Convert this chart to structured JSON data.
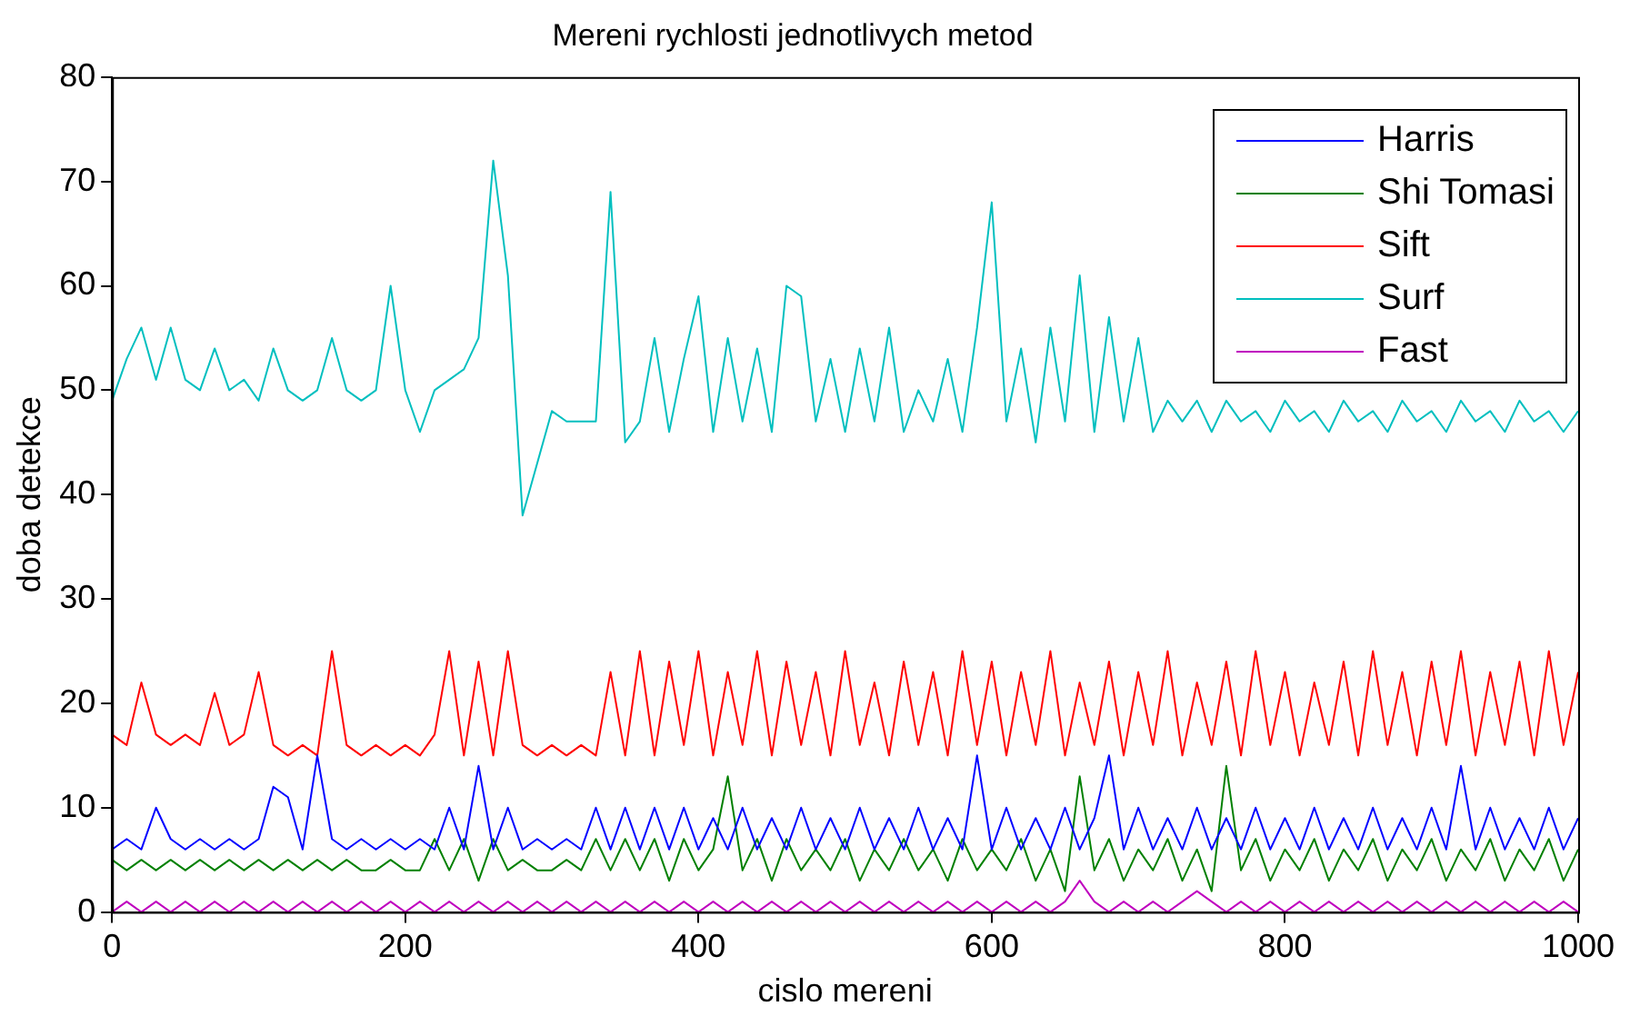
{
  "chart_data": {
    "type": "line",
    "title": "Mereni rychlosti jednotlivych metod",
    "xlabel": "cislo mereni",
    "ylabel": "doba detekce",
    "legend": "top right",
    "xlim": [
      0,
      1000
    ],
    "ylim": [
      0,
      80
    ],
    "xticks": [
      0,
      200,
      400,
      600,
      800,
      1000
    ],
    "yticks": [
      0,
      10,
      20,
      30,
      40,
      50,
      60,
      70,
      80
    ],
    "x": [
      0,
      10,
      20,
      30,
      40,
      50,
      60,
      70,
      80,
      90,
      100,
      110,
      120,
      130,
      140,
      150,
      160,
      170,
      180,
      190,
      200,
      210,
      220,
      230,
      240,
      250,
      260,
      270,
      280,
      290,
      300,
      310,
      320,
      330,
      340,
      350,
      360,
      370,
      380,
      390,
      400,
      410,
      420,
      430,
      440,
      450,
      460,
      470,
      480,
      490,
      500,
      510,
      520,
      530,
      540,
      550,
      560,
      570,
      580,
      590,
      600,
      610,
      620,
      630,
      640,
      650,
      660,
      670,
      680,
      690,
      700,
      710,
      720,
      730,
      740,
      750,
      760,
      770,
      780,
      790,
      800,
      810,
      820,
      830,
      840,
      850,
      860,
      870,
      880,
      890,
      900,
      910,
      920,
      930,
      940,
      950,
      960,
      970,
      980,
      990,
      1000
    ],
    "series": [
      {
        "name": "Harris",
        "color": "#0000ff",
        "values": [
          6,
          7,
          6,
          10,
          7,
          6,
          7,
          6,
          7,
          6,
          7,
          12,
          11,
          6,
          15,
          7,
          6,
          7,
          6,
          7,
          6,
          7,
          6,
          10,
          6,
          14,
          6,
          10,
          6,
          7,
          6,
          7,
          6,
          10,
          6,
          10,
          6,
          10,
          6,
          10,
          6,
          9,
          6,
          10,
          6,
          9,
          6,
          10,
          6,
          9,
          6,
          10,
          6,
          9,
          6,
          10,
          6,
          9,
          6,
          15,
          6,
          10,
          6,
          9,
          6,
          10,
          6,
          9,
          15,
          6,
          10,
          6,
          9,
          6,
          10,
          6,
          9,
          6,
          10,
          6,
          9,
          6,
          10,
          6,
          9,
          6,
          10,
          6,
          9,
          6,
          10,
          6,
          14,
          6,
          10,
          6,
          9,
          6,
          10,
          6,
          9
        ]
      },
      {
        "name": "Shi Tomasi",
        "color": "#008000",
        "values": [
          5,
          4,
          5,
          4,
          5,
          4,
          5,
          4,
          5,
          4,
          5,
          4,
          5,
          4,
          5,
          4,
          5,
          4,
          4,
          5,
          4,
          4,
          7,
          4,
          7,
          3,
          7,
          4,
          5,
          4,
          4,
          5,
          4,
          7,
          4,
          7,
          4,
          7,
          3,
          7,
          4,
          6,
          13,
          4,
          7,
          3,
          7,
          4,
          6,
          4,
          7,
          3,
          6,
          4,
          7,
          4,
          6,
          3,
          7,
          4,
          6,
          4,
          7,
          3,
          6,
          2,
          13,
          4,
          7,
          3,
          6,
          4,
          7,
          3,
          6,
          2,
          14,
          4,
          7,
          3,
          6,
          4,
          7,
          3,
          6,
          4,
          7,
          3,
          6,
          4,
          7,
          3,
          6,
          4,
          7,
          3,
          6,
          4,
          7,
          3,
          6
        ]
      },
      {
        "name": "Sift",
        "color": "#ff0000",
        "values": [
          17,
          16,
          22,
          17,
          16,
          17,
          16,
          21,
          16,
          17,
          23,
          16,
          15,
          16,
          15,
          25,
          16,
          15,
          16,
          15,
          16,
          15,
          17,
          25,
          15,
          24,
          15,
          25,
          16,
          15,
          16,
          15,
          16,
          15,
          23,
          15,
          25,
          15,
          24,
          16,
          25,
          15,
          23,
          16,
          25,
          15,
          24,
          16,
          23,
          15,
          25,
          16,
          22,
          15,
          24,
          16,
          23,
          15,
          25,
          16,
          24,
          15,
          23,
          16,
          25,
          15,
          22,
          16,
          24,
          15,
          23,
          16,
          25,
          15,
          22,
          16,
          24,
          15,
          25,
          16,
          23,
          15,
          22,
          16,
          24,
          15,
          25,
          16,
          23,
          15,
          24,
          16,
          25,
          15,
          23,
          16,
          24,
          15,
          25,
          16,
          23
        ]
      },
      {
        "name": "Surf",
        "color": "#00bfbf",
        "values": [
          49,
          53,
          56,
          51,
          56,
          51,
          50,
          54,
          50,
          51,
          49,
          54,
          50,
          49,
          50,
          55,
          50,
          49,
          50,
          60,
          50,
          46,
          50,
          51,
          52,
          55,
          72,
          61,
          38,
          43,
          48,
          47,
          47,
          47,
          69,
          45,
          47,
          55,
          46,
          53,
          59,
          46,
          55,
          47,
          54,
          46,
          60,
          59,
          47,
          53,
          46,
          54,
          47,
          56,
          46,
          50,
          47,
          53,
          46,
          56,
          68,
          47,
          54,
          45,
          56,
          47,
          61,
          46,
          57,
          47,
          55,
          46,
          49,
          47,
          49,
          46,
          49,
          47,
          48,
          46,
          49,
          47,
          48,
          46,
          49,
          47,
          48,
          46,
          49,
          47,
          48,
          46,
          49,
          47,
          48,
          46,
          49,
          47,
          48,
          46,
          48
        ]
      },
      {
        "name": "Fast",
        "color": "#bf00bf",
        "values": [
          0,
          1,
          0,
          1,
          0,
          1,
          0,
          1,
          0,
          1,
          0,
          1,
          0,
          1,
          0,
          1,
          0,
          1,
          0,
          1,
          0,
          1,
          0,
          1,
          0,
          1,
          0,
          1,
          0,
          1,
          0,
          1,
          0,
          1,
          0,
          1,
          0,
          1,
          0,
          1,
          0,
          1,
          0,
          1,
          0,
          1,
          0,
          1,
          0,
          1,
          0,
          1,
          0,
          1,
          0,
          1,
          0,
          1,
          0,
          1,
          0,
          1,
          0,
          1,
          0,
          1,
          3,
          1,
          0,
          1,
          0,
          1,
          0,
          1,
          2,
          1,
          0,
          1,
          0,
          1,
          0,
          1,
          0,
          1,
          0,
          1,
          0,
          1,
          0,
          1,
          0,
          1,
          0,
          1,
          0,
          1,
          0,
          1,
          0,
          1,
          0
        ]
      }
    ]
  }
}
